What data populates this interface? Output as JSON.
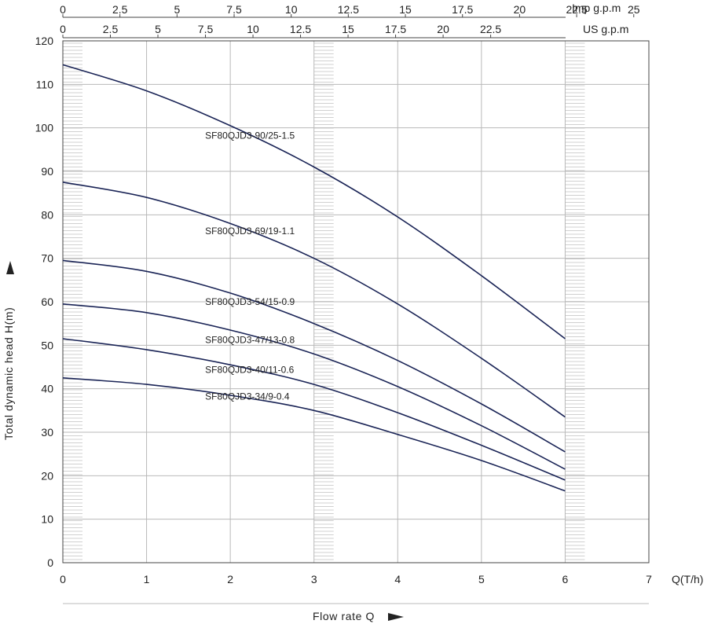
{
  "chart_data": {
    "type": "line",
    "xlabel": "Flow rate Q",
    "xunit": "Q(T/h)",
    "ylabel": "Total dynamic head H(m)",
    "xlim": [
      0,
      7
    ],
    "ylim": [
      0,
      120
    ],
    "x_ticks": [
      "0",
      "1",
      "2",
      "3",
      "4",
      "5",
      "6",
      "7"
    ],
    "y_ticks": [
      "0",
      "10",
      "20",
      "30",
      "40",
      "50",
      "60",
      "70",
      "80",
      "90",
      "100",
      "110",
      "120"
    ],
    "grid": true,
    "secondary_axes": [
      {
        "unit": "Imp g.p.m",
        "tick_labels": [
          "0",
          "2.5",
          "5",
          "7.5",
          "10",
          "12.5",
          "15",
          "17.5",
          "20",
          "22.5",
          "25"
        ],
        "tick_values": [
          0,
          2.5,
          5,
          7.5,
          10,
          12.5,
          15,
          17.5,
          20,
          22.5,
          25
        ]
      },
      {
        "unit": "US g.p.m",
        "tick_labels": [
          "0",
          "2.5",
          "5",
          "7.5",
          "10",
          "12.5",
          "15",
          "17.5",
          "20",
          "22.5"
        ],
        "tick_values": [
          0,
          2.5,
          5,
          7.5,
          10,
          12.5,
          15,
          17.5,
          20,
          22.5
        ]
      }
    ],
    "highlight_bands_x": [
      0,
      3,
      6
    ],
    "series": [
      {
        "name": "SF80QJD3-90/25-1.5",
        "x": [
          0,
          1,
          2,
          3,
          4,
          5,
          6
        ],
        "y": [
          114.5,
          108.5,
          100.5,
          91,
          79.5,
          66,
          51.5
        ],
        "label_x": 1.7,
        "label_y": 97.5
      },
      {
        "name": "SF80QJD3-69/19-1.1",
        "x": [
          0,
          1,
          2,
          3,
          4,
          5,
          6
        ],
        "y": [
          87.5,
          84,
          78,
          70,
          59.5,
          47,
          33.5
        ],
        "label_x": 1.7,
        "label_y": 75.5
      },
      {
        "name": "SF80QJD3-54/15-0.9",
        "x": [
          0,
          1,
          2,
          3,
          4,
          5,
          6
        ],
        "y": [
          69.5,
          67,
          62,
          55,
          46.5,
          36.5,
          25.5
        ],
        "label_x": 1.7,
        "label_y": 59.3
      },
      {
        "name": "SF80QJD3-47/13-0.8",
        "x": [
          0,
          1,
          2,
          3,
          4,
          5,
          6
        ],
        "y": [
          59.5,
          57.5,
          53.5,
          48,
          40.5,
          31.5,
          21.5
        ],
        "label_x": 1.7,
        "label_y": 50.5
      },
      {
        "name": "SF80QJD3-40/11-0.6",
        "x": [
          0,
          1,
          2,
          3,
          4,
          5,
          6
        ],
        "y": [
          51.5,
          49,
          45.5,
          41,
          34.5,
          27,
          19
        ],
        "label_x": 1.7,
        "label_y": 43.6
      },
      {
        "name": "SF80QJD3-34/9-0.4",
        "x": [
          0,
          1,
          2,
          3,
          4,
          5,
          6
        ],
        "y": [
          42.5,
          41,
          38.5,
          35,
          29.5,
          23.5,
          16.5
        ],
        "label_x": 1.7,
        "label_y": 37.5
      }
    ],
    "colors": {
      "curve": "#1a2456",
      "grid": "#b9b9b9",
      "band_hatch": "#d0d0d0",
      "axis": "#444444"
    }
  }
}
